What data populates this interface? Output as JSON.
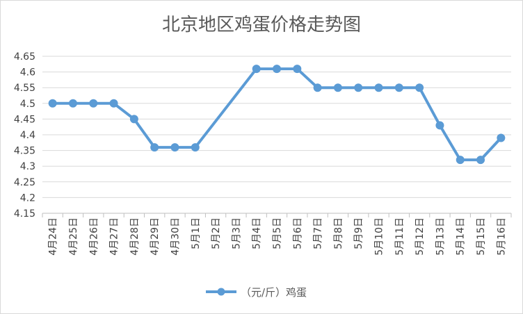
{
  "chart_data": {
    "type": "line",
    "title": "北京地区鸡蛋价格走势图",
    "xlabel": "",
    "ylabel": "",
    "categories": [
      "4月24日",
      "4月25日",
      "4月26日",
      "4月27日",
      "4月28日",
      "4月29日",
      "4月30日",
      "5月1日",
      "5月2日",
      "5月3日",
      "5月4日",
      "5月5日",
      "5月6日",
      "5月7日",
      "5月8日",
      "5月9日",
      "5月10日",
      "5月11日",
      "5月12日",
      "5月13日",
      "5月14日",
      "5月15日",
      "5月16日"
    ],
    "y_ticks": [
      "4.15",
      "4.2",
      "4.25",
      "4.3",
      "4.35",
      "4.4",
      "4.45",
      "4.5",
      "4.55",
      "4.6",
      "4.65"
    ],
    "ylim": [
      4.15,
      4.65
    ],
    "grid": true,
    "legend_position": "bottom",
    "series": [
      {
        "name": "（元/斤）鸡蛋",
        "color": "#5b9bd5",
        "values": [
          4.5,
          4.5,
          4.5,
          4.5,
          4.45,
          4.36,
          4.36,
          4.36,
          null,
          null,
          4.61,
          4.61,
          4.61,
          4.55,
          4.55,
          4.55,
          4.55,
          4.55,
          4.55,
          4.43,
          4.32,
          4.32,
          4.39
        ]
      }
    ]
  }
}
